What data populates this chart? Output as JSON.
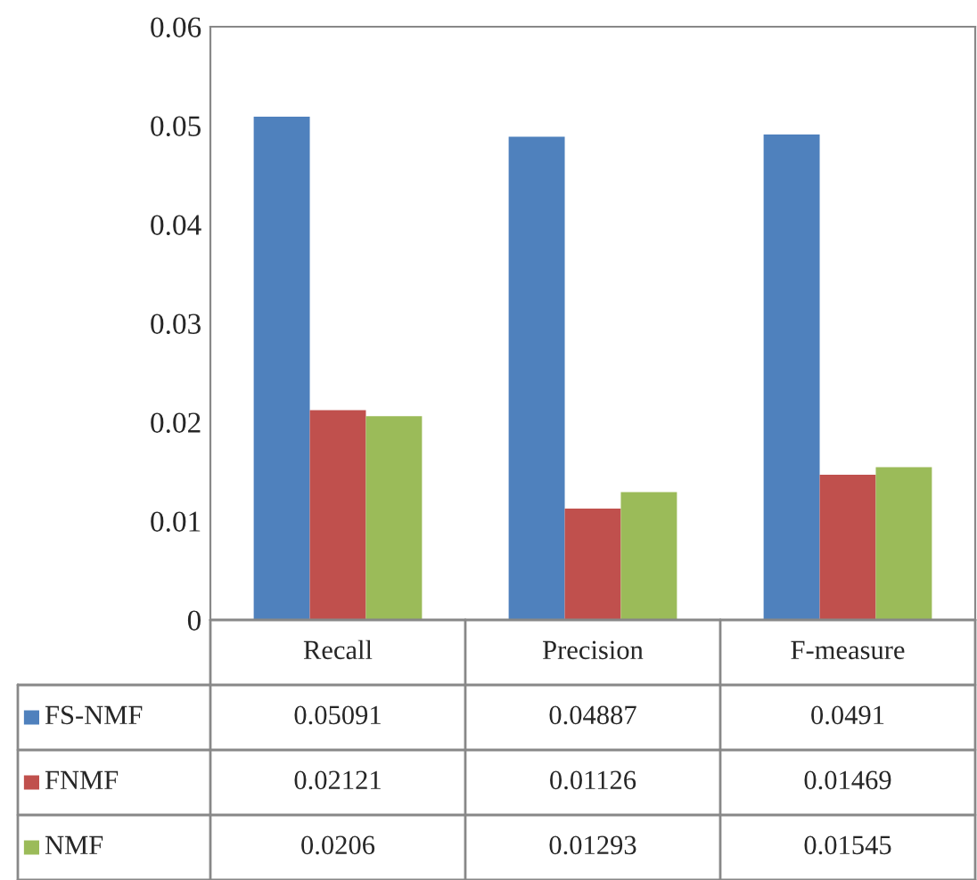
{
  "chart_data": {
    "type": "bar",
    "categories": [
      "Recall",
      "Precision",
      "F-measure"
    ],
    "series": [
      {
        "name": "FS-NMF",
        "color": "#4f81bd",
        "values": [
          0.05091,
          0.04887,
          0.0491
        ]
      },
      {
        "name": "FNMF",
        "color": "#c0504d",
        "values": [
          0.02121,
          0.01126,
          0.01469
        ]
      },
      {
        "name": "NMF",
        "color": "#9bbb59",
        "values": [
          0.0206,
          0.01293,
          0.01545
        ]
      }
    ],
    "ylim": [
      0,
      0.06
    ],
    "yticks": [
      0,
      0.01,
      0.02,
      0.03,
      0.04,
      0.05,
      0.06
    ],
    "data_labels": true,
    "legend": "bottom",
    "grid": false
  }
}
